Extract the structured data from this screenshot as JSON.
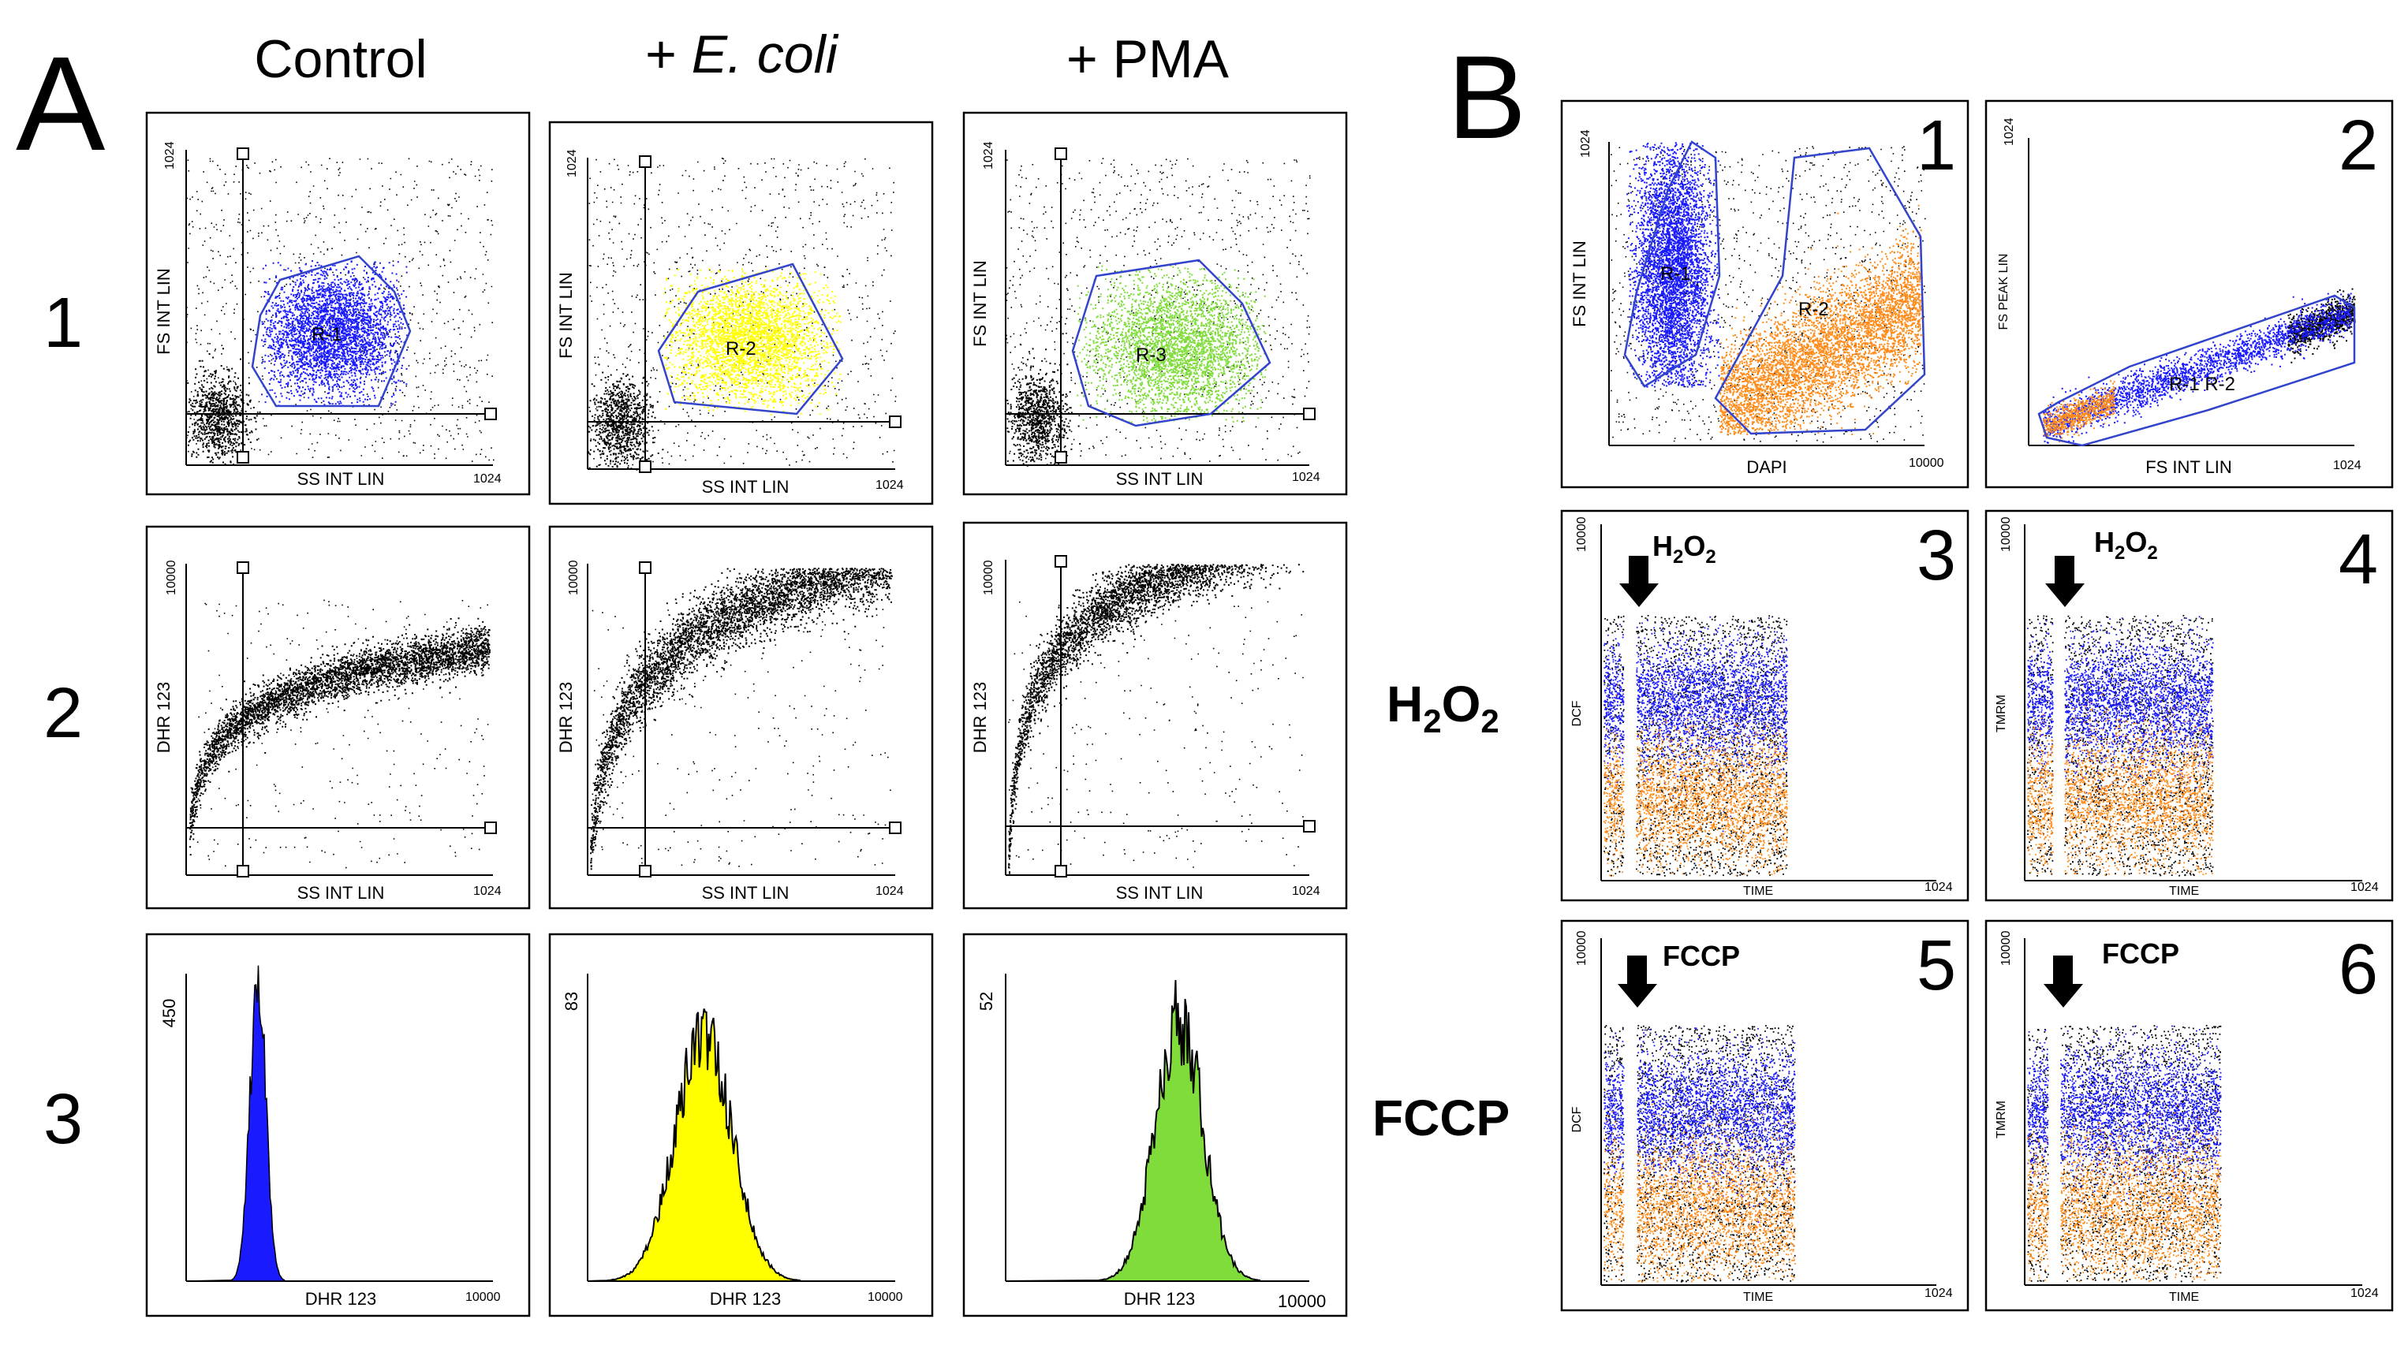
{
  "panel_letters": {
    "A": "A",
    "B": "B"
  },
  "column_headers": {
    "control": "Control",
    "ecoli_prefix": "+ ",
    "ecoli_italic": "E. coli",
    "pma": "+ PMA"
  },
  "row_numbers": [
    "1",
    "2",
    "3"
  ],
  "side_labels": {
    "h2o2_main": "H",
    "h2o2_sub1": "2",
    "h2o2_mid": "O",
    "h2o2_sub2": "2",
    "fccp": "FCCP"
  },
  "panel_numbers": [
    "1",
    "2",
    "3",
    "4",
    "5",
    "6"
  ],
  "axis_labels": {
    "fs_int_lin": "FS INT LIN",
    "ss_int_lin": "SS INT LIN",
    "dhr123": "DHR 123",
    "dapi": "DAPI",
    "fs_peak_lin": "FS PEAK LIN",
    "dcf": "DCF",
    "tmrm": "TMRM",
    "time": "TIME"
  },
  "tick_labels": {
    "t1024": "1024",
    "t10000": "10000"
  },
  "gate_labels": {
    "r1": "R-1",
    "r2": "R-2",
    "r3": "R-3",
    "r1r2": "R-1 R-2"
  },
  "histogram_max": {
    "control": "450",
    "ecoli": "83",
    "pma": "52"
  },
  "treatments": {
    "h2o2_annotation": "H",
    "h2o2_annotation_sub": "2",
    "h2o2_annotation_o": "O",
    "fccp": "FCCP"
  },
  "colors": {
    "control": "#1a1aff",
    "ecoli": "#ffff00",
    "pma": "#7fdc3a",
    "orange": "#ff8c1a",
    "gate": "#3344cc"
  }
}
